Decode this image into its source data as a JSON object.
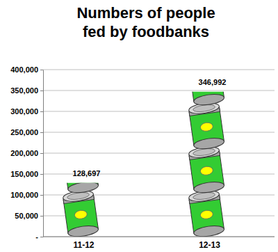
{
  "chart_data": {
    "type": "bar",
    "title": "Numbers of people fed by foodbanks",
    "categories": [
      "11-12",
      "12-13"
    ],
    "values": [
      128697,
      346992
    ],
    "value_labels": [
      "128,697",
      "346,992"
    ],
    "data_labels": true,
    "color": "#33cc33",
    "marker": "can",
    "ylim": [
      0,
      400000
    ],
    "yticks": [
      {
        "value": 0,
        "label": "-"
      },
      {
        "value": 50000,
        "label": "50,000"
      },
      {
        "value": 100000,
        "label": "100,000"
      },
      {
        "value": 150000,
        "label": "150,000"
      },
      {
        "value": 200000,
        "label": "200,000"
      },
      {
        "value": 250000,
        "label": "250,000"
      },
      {
        "value": 300000,
        "label": "300,000"
      },
      {
        "value": 350000,
        "label": "350,000"
      },
      {
        "value": 400000,
        "label": "400,000"
      }
    ],
    "grid": true
  }
}
